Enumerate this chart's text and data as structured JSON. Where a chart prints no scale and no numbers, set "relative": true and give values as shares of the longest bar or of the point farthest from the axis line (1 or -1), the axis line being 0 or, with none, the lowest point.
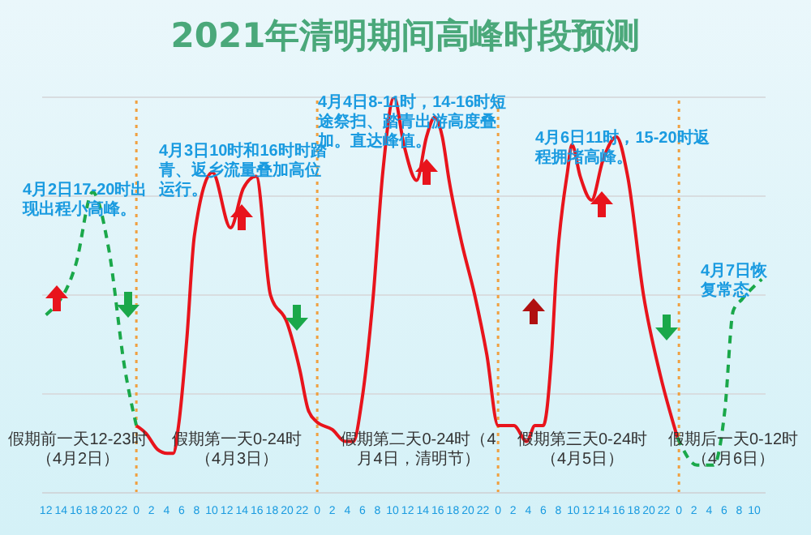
{
  "chart_data": {
    "type": "line",
    "title": "2021年清明期间高峰时段预测",
    "relative": true,
    "grid": "y",
    "marker": "none",
    "legend": false,
    "xlim": [
      "2021-04-02T11:30",
      "2021-04-06T11:30"
    ],
    "xticks": [
      {
        "value": "2021-04-02T12:00",
        "label": "12"
      },
      {
        "value": "2021-04-02T14:00",
        "label": "14"
      },
      {
        "value": "2021-04-02T16:00",
        "label": "16"
      },
      {
        "value": "2021-04-02T18:00",
        "label": "18"
      },
      {
        "value": "2021-04-02T20:00",
        "label": "20"
      },
      {
        "value": "2021-04-02T22:00",
        "label": "22"
      },
      {
        "value": "2021-04-03T00:00",
        "label": "0"
      },
      {
        "value": "2021-04-03T02:00",
        "label": "2"
      },
      {
        "value": "2021-04-03T04:00",
        "label": "4"
      },
      {
        "value": "2021-04-03T06:00",
        "label": "6"
      },
      {
        "value": "2021-04-03T08:00",
        "label": "8"
      },
      {
        "value": "2021-04-03T10:00",
        "label": "10"
      },
      {
        "value": "2021-04-03T12:00",
        "label": "12"
      },
      {
        "value": "2021-04-03T14:00",
        "label": "14"
      },
      {
        "value": "2021-04-03T16:00",
        "label": "16"
      },
      {
        "value": "2021-04-03T18:00",
        "label": "18"
      },
      {
        "value": "2021-04-03T20:00",
        "label": "20"
      },
      {
        "value": "2021-04-03T22:00",
        "label": "22"
      },
      {
        "value": "2021-04-04T00:00",
        "label": "0"
      },
      {
        "value": "2021-04-04T02:00",
        "label": "2"
      },
      {
        "value": "2021-04-04T04:00",
        "label": "4"
      },
      {
        "value": "2021-04-04T06:00",
        "label": "6"
      },
      {
        "value": "2021-04-04T08:00",
        "label": "8"
      },
      {
        "value": "2021-04-04T10:00",
        "label": "10"
      },
      {
        "value": "2021-04-04T12:00",
        "label": "12"
      },
      {
        "value": "2021-04-04T14:00",
        "label": "14"
      },
      {
        "value": "2021-04-04T16:00",
        "label": "16"
      },
      {
        "value": "2021-04-04T18:00",
        "label": "18"
      },
      {
        "value": "2021-04-04T20:00",
        "label": "20"
      },
      {
        "value": "2021-04-04T22:00",
        "label": "22"
      },
      {
        "value": "2021-04-05T00:00",
        "label": "0"
      },
      {
        "value": "2021-04-05T02:00",
        "label": "2"
      },
      {
        "value": "2021-04-05T04:00",
        "label": "4"
      },
      {
        "value": "2021-04-05T06:00",
        "label": "6"
      },
      {
        "value": "2021-04-05T08:00",
        "label": "8"
      },
      {
        "value": "2021-04-05T10:00",
        "label": "10"
      },
      {
        "value": "2021-04-05T12:00",
        "label": "12"
      },
      {
        "value": "2021-04-05T14:00",
        "label": "14"
      },
      {
        "value": "2021-04-05T16:00",
        "label": "16"
      },
      {
        "value": "2021-04-05T18:00",
        "label": "18"
      },
      {
        "value": "2021-04-05T20:00",
        "label": "20"
      },
      {
        "value": "2021-04-05T22:00",
        "label": "22"
      },
      {
        "value": "2021-04-06T00:00",
        "label": "0"
      },
      {
        "value": "2021-04-06T02:00",
        "label": "2"
      },
      {
        "value": "2021-04-06T04:00",
        "label": "4"
      },
      {
        "value": "2021-04-06T06:00",
        "label": "6"
      },
      {
        "value": "2021-04-06T08:00",
        "label": "8"
      },
      {
        "value": "2021-04-06T10:00",
        "label": "10"
      }
    ],
    "series": [
      {
        "color": "#1aa84a",
        "line_style": "dashed",
        "x": [
          "2021-04-02T12:00",
          "2021-04-02T16:00",
          "2021-04-02T18:12",
          "2021-04-02T20:18",
          "2021-04-02T22:30",
          "2021-04-03T00:00"
        ],
        "values": [
          0.45,
          0.58,
          0.76,
          0.62,
          0.31,
          0.17
        ]
      },
      {
        "color": "#e8141c",
        "line_style": "solid",
        "x": [
          "2021-04-03T00:00",
          "2021-04-03T01:18",
          "2021-04-03T02:48",
          "2021-04-03T04:06",
          "2021-04-03T04:54",
          "2021-04-03T05:36",
          "2021-04-03T06:42",
          "2021-04-03T07:42",
          "2021-04-03T10:06",
          "2021-04-03T12:30",
          "2021-04-03T14:12",
          "2021-04-03T15:54",
          "2021-04-03T17:48",
          "2021-04-03T20:00",
          "2021-04-03T21:42",
          "2021-04-03T22:48",
          "2021-04-03T23:54",
          "2021-04-04T02:00",
          "2021-04-04T03:42",
          "2021-04-04T04:48",
          "2021-04-04T05:54",
          "2021-04-04T07:24",
          "2021-04-04T08:42",
          "2021-04-04T10:12",
          "2021-04-04T11:30",
          "2021-04-04T13:12",
          "2021-04-04T14:30",
          "2021-04-04T15:36",
          "2021-04-04T16:36",
          "2021-04-04T17:30",
          "2021-04-04T19:12",
          "2021-04-04T20:54",
          "2021-04-04T22:30",
          "2021-04-05T00:00",
          "2021-04-05T02:06",
          "2021-04-05T03:48",
          "2021-04-05T04:54",
          "2021-04-05T06:00",
          "2021-04-05T07:06",
          "2021-04-05T07:42",
          "2021-04-05T09:12",
          "2021-04-05T09:48",
          "2021-04-05T10:54",
          "2021-04-05T12:24",
          "2021-04-05T13:54",
          "2021-04-05T15:42",
          "2021-04-05T17:12",
          "2021-04-05T19:18",
          "2021-04-05T21:30",
          "2021-04-05T23:48"
        ],
        "values": [
          0.17,
          0.15,
          0.11,
          0.1,
          0.1,
          0.17,
          0.39,
          0.65,
          0.81,
          0.67,
          0.77,
          0.8,
          0.5,
          0.43,
          0.31,
          0.21,
          0.18,
          0.16,
          0.13,
          0.13,
          0.23,
          0.49,
          0.81,
          1,
          0.88,
          0.79,
          0.9,
          0.95,
          0.9,
          0.79,
          0.63,
          0.5,
          0.35,
          0.17,
          0.17,
          0.13,
          0.17,
          0.17,
          0.35,
          0.55,
          0.81,
          0.88,
          0.8,
          0.74,
          0.84,
          0.9,
          0.8,
          0.5,
          0.3,
          0.14
        ]
      },
      {
        "color": "#1aa84a",
        "line_style": "dashed",
        "x": [
          "2021-04-05T23:48",
          "2021-04-06T02:24",
          "2021-04-06T04:36",
          "2021-04-06T06:06",
          "2021-04-06T07:12",
          "2021-04-06T08:24",
          "2021-04-06T11:00"
        ],
        "values": [
          0.14,
          0.07,
          0.07,
          0.21,
          0.46,
          0.49,
          0.54
        ]
      }
    ],
    "ref_lines": [
      {
        "axis": "x",
        "value": "2021-04-03T00:00",
        "color": "#f0a040",
        "line_style": "dotted"
      },
      {
        "axis": "x",
        "value": "2021-04-04T00:00",
        "color": "#f0a040",
        "line_style": "dotted"
      },
      {
        "axis": "x",
        "value": "2021-04-05T00:00",
        "color": "#f0a040",
        "line_style": "dotted"
      },
      {
        "axis": "x",
        "value": "2021-04-06T00:00",
        "color": "#f0a040",
        "line_style": "dotted"
      }
    ],
    "annotations": [
      "4月2日17-20时出现出程小高峰。",
      "4月3日10时和16时时踏青、返乡流量叠加高位运行。",
      "4月4日8-11时，14-16时短途祭扫、踏青出游高度叠加。直达峰值。",
      "4月6日11时，15-20时返程拥堵高峰。",
      "4月7日恢复常态",
      "假期前一天12-23时（4月2日）",
      "假期第一天0-24时（4月3日）",
      "假期第二天0-24时（4月4日，清明节）",
      "假期第三天0-24时（4月5日）",
      "假期后一天0-12时（4月6日）"
    ]
  }
}
